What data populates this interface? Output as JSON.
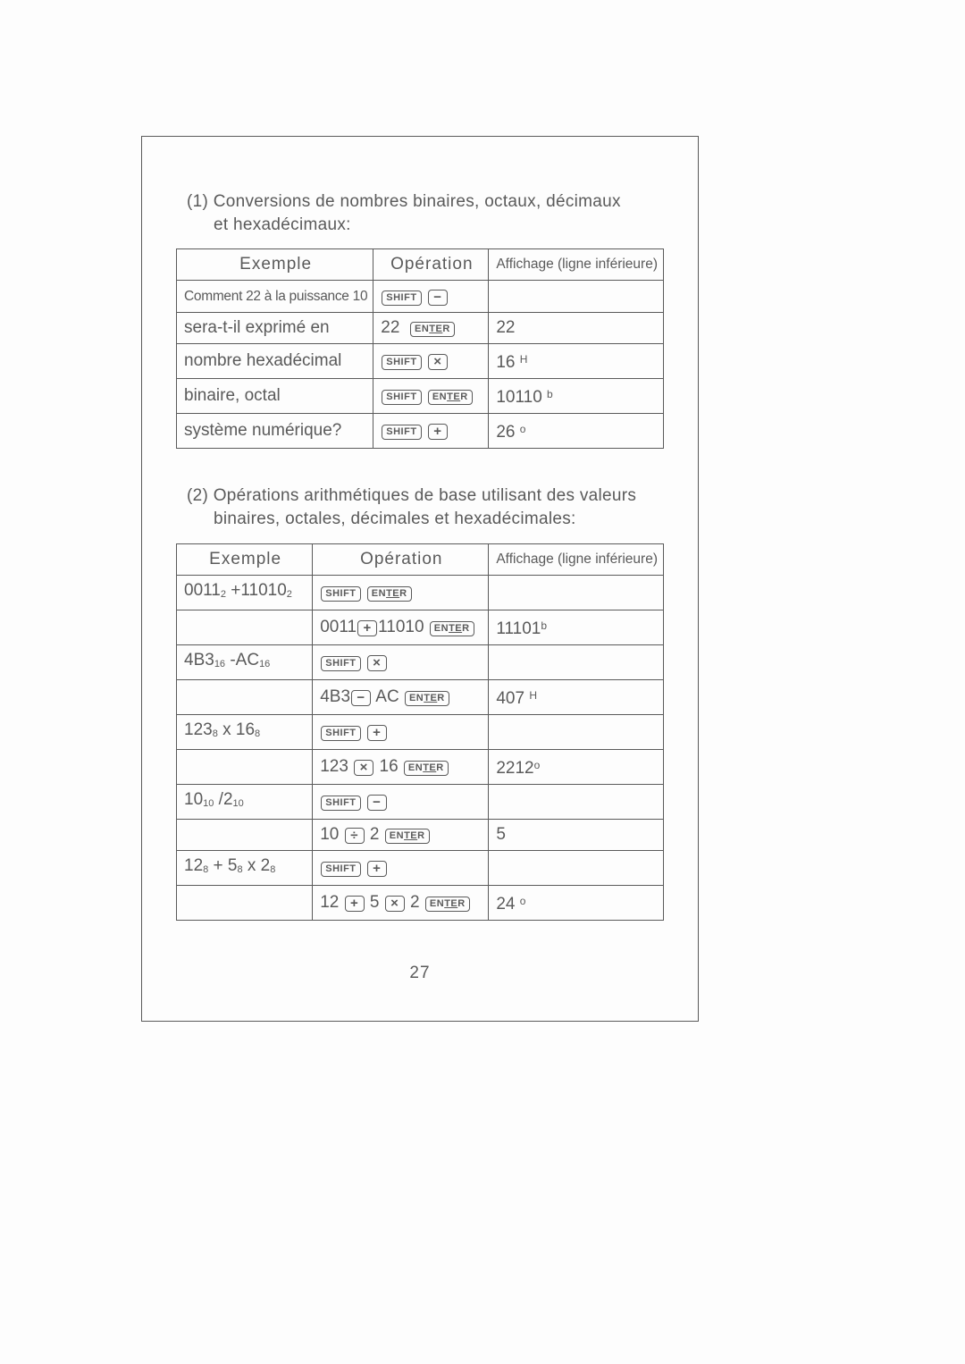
{
  "page_number": "27",
  "section1": {
    "title_line1": "(1) Conversions de nombres binaires, octaux, décimaux",
    "title_line2": "et hexadécimaux:",
    "headers": {
      "c1": "Exemple",
      "c2": "Opération",
      "c3": "Affichage (ligne inférieure)"
    },
    "rows": [
      {
        "exemple_html": "<span class='tightsmall'>Comment 22 à la puissance 10</span>",
        "op_html": "<span class='key'>SHIFT</span> <span class='key big'>−</span>",
        "aff_html": ""
      },
      {
        "exemple_html": "sera-t-il exprimé en",
        "op_html": "22 &nbsp;<span class='key enter'>EN<span class='under'>TE</span>R</span>",
        "aff_html": "22"
      },
      {
        "exemple_html": "nombre hexadécimal",
        "op_html": "<span class='key'>SHIFT</span> <span class='key big'>×</span>",
        "aff_html": "16 <sup>H</sup>"
      },
      {
        "exemple_html": "binaire, octal",
        "op_html": "<span class='key'>SHIFT</span> <span class='key enter'>EN<span class='under'>TE</span>R</span>",
        "aff_html": "10110 <sup>b</sup>"
      },
      {
        "exemple_html": "système numérique?",
        "op_html": "<span class='key'>SHIFT</span> <span class='key big'>+</span>",
        "aff_html": "26 <sup>o</sup>"
      }
    ]
  },
  "section2": {
    "title_line1": "(2) Opérations arithmétiques de base utilisant des valeurs",
    "title_line2": "binaires, octales,  décimales et hexadécimales:",
    "headers": {
      "c1": "Exemple",
      "c2": "Opération",
      "c3": "Affichage (ligne inférieure)"
    },
    "rows": [
      {
        "exemple_html": "0011<sub>2</sub> +11010<sub>2</sub>",
        "op_html": "<span class='key'>SHIFT</span> <span class='key enter'>EN<span class='under'>TE</span>R</span>",
        "aff_html": ""
      },
      {
        "exemple_html": "",
        "op_html": "0011<span class='key big'>+</span>11010 <span class='key enter'>EN<span class='under'>TE</span>R</span>",
        "aff_html": "11101<sup>b</sup>"
      },
      {
        "exemple_html": "4B3<sub>16</sub> -AC<sub>16</sub>",
        "op_html": "<span class='key'>SHIFT</span> <span class='key big'>×</span>",
        "aff_html": ""
      },
      {
        "exemple_html": "",
        "op_html": "4B3<span class='key big'>−</span> AC <span class='key enter'>EN<span class='under'>TE</span>R</span>",
        "aff_html": "407 <sup>H</sup>"
      },
      {
        "exemple_html": "123<sub>8</sub>  x 16<sub>8</sub>",
        "op_html": "<span class='key'>SHIFT</span> <span class='key big'>+</span>",
        "aff_html": ""
      },
      {
        "exemple_html": "",
        "op_html": "123 <span class='key big'>×</span> 16 <span class='key enter'>EN<span class='under'>TE</span>R</span>",
        "aff_html": "2212<sup>o</sup>"
      },
      {
        "exemple_html": "10<sub>10</sub> /2<sub>10</sub>",
        "op_html": "<span class='key'>SHIFT</span> <span class='key big'>−</span>",
        "aff_html": ""
      },
      {
        "exemple_html": "",
        "op_html": "10 <span class='key big'>÷</span> 2 <span class='key enter'>EN<span class='under'>TE</span>R</span>",
        "aff_html": "5"
      },
      {
        "exemple_html": "12<sub>8</sub>  + 5<sub>8</sub> x 2<sub>8</sub>",
        "op_html": "<span class='key'>SHIFT</span> <span class='key big'>+</span>",
        "aff_html": ""
      },
      {
        "exemple_html": "",
        "op_html": "12 <span class='key big'>+</span> 5 <span class='key big'>×</span> 2 <span class='key enter'>EN<span class='under'>TE</span>R</span>",
        "aff_html": "24 <sup>o</sup>"
      }
    ]
  }
}
